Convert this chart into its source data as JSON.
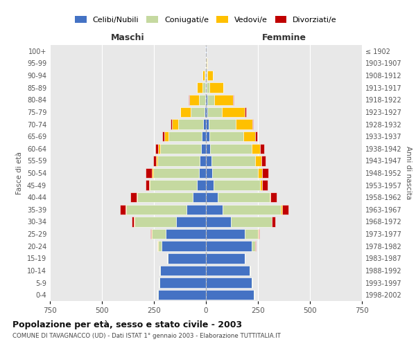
{
  "age_groups": [
    "0-4",
    "5-9",
    "10-14",
    "15-19",
    "20-24",
    "25-29",
    "30-34",
    "35-39",
    "40-44",
    "45-49",
    "50-54",
    "55-59",
    "60-64",
    "65-69",
    "70-74",
    "75-79",
    "80-84",
    "85-89",
    "90-94",
    "95-99",
    "100+"
  ],
  "birth_years": [
    "1998-2002",
    "1993-1997",
    "1988-1992",
    "1983-1987",
    "1978-1982",
    "1973-1977",
    "1968-1972",
    "1963-1967",
    "1958-1962",
    "1953-1957",
    "1948-1952",
    "1943-1947",
    "1938-1942",
    "1933-1937",
    "1928-1932",
    "1923-1927",
    "1918-1922",
    "1913-1917",
    "1908-1912",
    "1903-1907",
    "≤ 1902"
  ],
  "male": {
    "celibi": [
      230,
      225,
      220,
      185,
      215,
      195,
      145,
      95,
      65,
      45,
      35,
      30,
      25,
      20,
      15,
      8,
      5,
      2,
      2,
      0,
      2
    ],
    "coniugati": [
      2,
      2,
      2,
      2,
      15,
      65,
      200,
      290,
      265,
      225,
      220,
      205,
      195,
      160,
      120,
      65,
      30,
      15,
      5,
      2,
      0
    ],
    "vedovi": [
      0,
      0,
      0,
      0,
      2,
      2,
      2,
      2,
      2,
      5,
      5,
      5,
      10,
      20,
      30,
      50,
      45,
      25,
      10,
      2,
      0
    ],
    "divorziati": [
      0,
      0,
      0,
      0,
      2,
      5,
      10,
      25,
      30,
      15,
      30,
      15,
      15,
      10,
      5,
      2,
      2,
      2,
      0,
      0,
      0
    ]
  },
  "female": {
    "nubili": [
      230,
      220,
      210,
      185,
      220,
      185,
      120,
      80,
      55,
      35,
      30,
      25,
      20,
      15,
      12,
      8,
      5,
      2,
      2,
      0,
      2
    ],
    "coniugate": [
      2,
      2,
      2,
      2,
      15,
      65,
      195,
      280,
      250,
      225,
      220,
      210,
      200,
      165,
      130,
      70,
      35,
      15,
      5,
      2,
      0
    ],
    "vedove": [
      0,
      0,
      0,
      0,
      2,
      2,
      2,
      5,
      5,
      10,
      20,
      30,
      40,
      55,
      80,
      110,
      90,
      65,
      25,
      5,
      2
    ],
    "divorziate": [
      0,
      0,
      0,
      0,
      2,
      5,
      15,
      30,
      30,
      25,
      30,
      20,
      20,
      10,
      5,
      5,
      2,
      2,
      0,
      0,
      0
    ]
  },
  "colors": {
    "celibi": "#4472c4",
    "coniugati": "#c5d9a0",
    "vedovi": "#ffc000",
    "divorziati": "#c00000"
  },
  "xlim": 750,
  "title": "Popolazione per età, sesso e stato civile - 2003",
  "subtitle": "COMUNE DI TAVAGNACCO (UD) - Dati ISTAT 1° gennaio 2003 - Elaborazione TUTTITALIA.IT",
  "xlabel_left": "Maschi",
  "xlabel_right": "Femmine",
  "ylabel_left": "Fasce di età",
  "ylabel_right": "Anni di nascita",
  "legend_labels": [
    "Celibi/Nubili",
    "Coniugati/e",
    "Vedovi/e",
    "Divorziati/e"
  ],
  "background_color": "#ffffff",
  "plot_bg_color": "#e8e8e8",
  "grid_color": "#ffffff"
}
